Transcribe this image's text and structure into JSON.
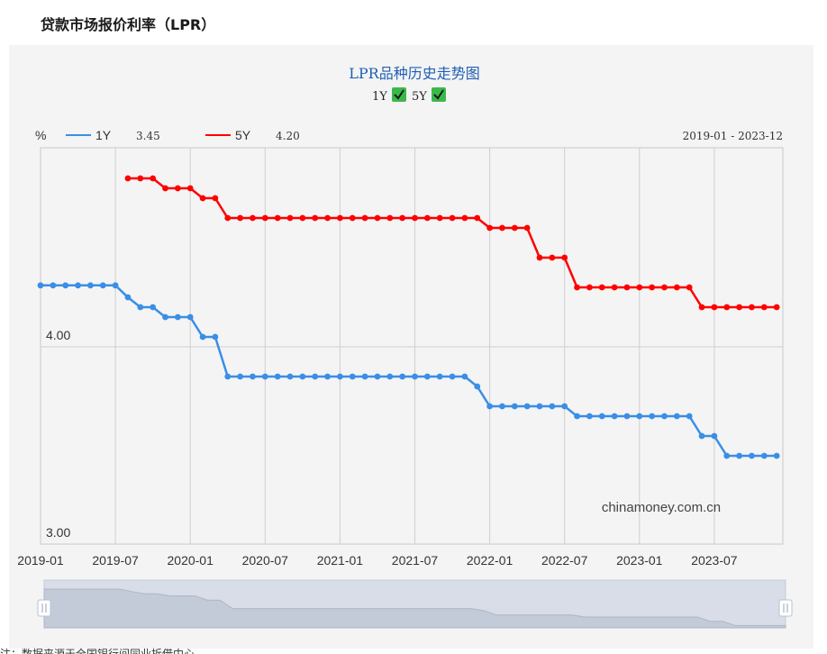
{
  "page": {
    "title": "贷款市场报价利率（LPR）"
  },
  "chart_data": {
    "type": "line",
    "title": "LPR品种历史走势图",
    "legend_toggles": [
      {
        "label": "1Y",
        "checked": true,
        "icon": "checkmark-icon"
      },
      {
        "label": "5Y",
        "checked": true,
        "icon": "checkmark-icon"
      }
    ],
    "y_unit": "%",
    "legend": [
      {
        "name": "1Y",
        "latest": "3.45",
        "color": "#3a8ee6"
      },
      {
        "name": "5Y",
        "latest": "4.20",
        "color": "#ff0000"
      }
    ],
    "date_range": "2019-01 - 2023-12",
    "watermark": "chinamoney.com.cn",
    "ylim": [
      3.0,
      5.0
    ],
    "y_ticks": [
      "3.00",
      "4.00"
    ],
    "x_ticks": [
      "2019-01",
      "2019-07",
      "2020-01",
      "2020-07",
      "2021-01",
      "2021-07",
      "2022-01",
      "2022-07",
      "2023-01",
      "2023-07"
    ],
    "x_start": "2019-01",
    "series": [
      {
        "name": "1Y",
        "color": "#3a8ee6",
        "points": [
          [
            "2019-01",
            4.31
          ],
          [
            "2019-02",
            4.31
          ],
          [
            "2019-03",
            4.31
          ],
          [
            "2019-04",
            4.31
          ],
          [
            "2019-05",
            4.31
          ],
          [
            "2019-06",
            4.31
          ],
          [
            "2019-07",
            4.31
          ],
          [
            "2019-08",
            4.25
          ],
          [
            "2019-09",
            4.2
          ],
          [
            "2019-10",
            4.2
          ],
          [
            "2019-11",
            4.15
          ],
          [
            "2019-12",
            4.15
          ],
          [
            "2020-01",
            4.15
          ],
          [
            "2020-02",
            4.05
          ],
          [
            "2020-03",
            4.05
          ],
          [
            "2020-04",
            3.85
          ],
          [
            "2020-05",
            3.85
          ],
          [
            "2020-06",
            3.85
          ],
          [
            "2020-07",
            3.85
          ],
          [
            "2020-08",
            3.85
          ],
          [
            "2020-09",
            3.85
          ],
          [
            "2020-10",
            3.85
          ],
          [
            "2020-11",
            3.85
          ],
          [
            "2020-12",
            3.85
          ],
          [
            "2021-01",
            3.85
          ],
          [
            "2021-02",
            3.85
          ],
          [
            "2021-03",
            3.85
          ],
          [
            "2021-04",
            3.85
          ],
          [
            "2021-05",
            3.85
          ],
          [
            "2021-06",
            3.85
          ],
          [
            "2021-07",
            3.85
          ],
          [
            "2021-08",
            3.85
          ],
          [
            "2021-09",
            3.85
          ],
          [
            "2021-10",
            3.85
          ],
          [
            "2021-11",
            3.85
          ],
          [
            "2021-12",
            3.8
          ],
          [
            "2022-01",
            3.7
          ],
          [
            "2022-02",
            3.7
          ],
          [
            "2022-03",
            3.7
          ],
          [
            "2022-04",
            3.7
          ],
          [
            "2022-05",
            3.7
          ],
          [
            "2022-06",
            3.7
          ],
          [
            "2022-07",
            3.7
          ],
          [
            "2022-08",
            3.65
          ],
          [
            "2022-09",
            3.65
          ],
          [
            "2022-10",
            3.65
          ],
          [
            "2022-11",
            3.65
          ],
          [
            "2022-12",
            3.65
          ],
          [
            "2023-01",
            3.65
          ],
          [
            "2023-02",
            3.65
          ],
          [
            "2023-03",
            3.65
          ],
          [
            "2023-04",
            3.65
          ],
          [
            "2023-05",
            3.65
          ],
          [
            "2023-06",
            3.55
          ],
          [
            "2023-07",
            3.55
          ],
          [
            "2023-08",
            3.45
          ],
          [
            "2023-09",
            3.45
          ],
          [
            "2023-10",
            3.45
          ],
          [
            "2023-11",
            3.45
          ],
          [
            "2023-12",
            3.45
          ]
        ]
      },
      {
        "name": "5Y",
        "color": "#ff0000",
        "points": [
          [
            "2019-08",
            4.85
          ],
          [
            "2019-09",
            4.85
          ],
          [
            "2019-10",
            4.85
          ],
          [
            "2019-11",
            4.8
          ],
          [
            "2019-12",
            4.8
          ],
          [
            "2020-01",
            4.8
          ],
          [
            "2020-02",
            4.75
          ],
          [
            "2020-03",
            4.75
          ],
          [
            "2020-04",
            4.65
          ],
          [
            "2020-05",
            4.65
          ],
          [
            "2020-06",
            4.65
          ],
          [
            "2020-07",
            4.65
          ],
          [
            "2020-08",
            4.65
          ],
          [
            "2020-09",
            4.65
          ],
          [
            "2020-10",
            4.65
          ],
          [
            "2020-11",
            4.65
          ],
          [
            "2020-12",
            4.65
          ],
          [
            "2021-01",
            4.65
          ],
          [
            "2021-02",
            4.65
          ],
          [
            "2021-03",
            4.65
          ],
          [
            "2021-04",
            4.65
          ],
          [
            "2021-05",
            4.65
          ],
          [
            "2021-06",
            4.65
          ],
          [
            "2021-07",
            4.65
          ],
          [
            "2021-08",
            4.65
          ],
          [
            "2021-09",
            4.65
          ],
          [
            "2021-10",
            4.65
          ],
          [
            "2021-11",
            4.65
          ],
          [
            "2021-12",
            4.65
          ],
          [
            "2022-01",
            4.6
          ],
          [
            "2022-02",
            4.6
          ],
          [
            "2022-03",
            4.6
          ],
          [
            "2022-04",
            4.6
          ],
          [
            "2022-05",
            4.45
          ],
          [
            "2022-06",
            4.45
          ],
          [
            "2022-07",
            4.45
          ],
          [
            "2022-08",
            4.3
          ],
          [
            "2022-09",
            4.3
          ],
          [
            "2022-10",
            4.3
          ],
          [
            "2022-11",
            4.3
          ],
          [
            "2022-12",
            4.3
          ],
          [
            "2023-01",
            4.3
          ],
          [
            "2023-02",
            4.3
          ],
          [
            "2023-03",
            4.3
          ],
          [
            "2023-04",
            4.3
          ],
          [
            "2023-05",
            4.3
          ],
          [
            "2023-06",
            4.2
          ],
          [
            "2023-07",
            4.2
          ],
          [
            "2023-08",
            4.2
          ],
          [
            "2023-09",
            4.2
          ],
          [
            "2023-10",
            4.2
          ],
          [
            "2023-11",
            4.2
          ],
          [
            "2023-12",
            4.2
          ]
        ]
      }
    ],
    "grid": true
  },
  "slider": {
    "left_handle_icon": "drag-handle-icon",
    "right_handle_icon": "drag-handle-icon"
  },
  "footnote": "注：数据来源于全国银行间同业拆借中心。"
}
